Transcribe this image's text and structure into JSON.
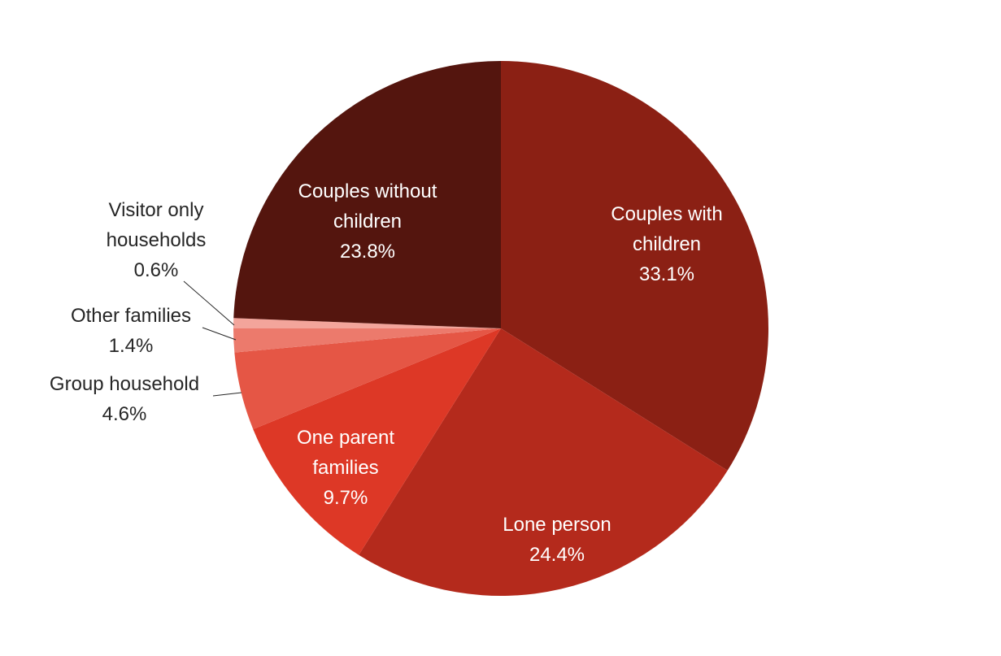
{
  "chart_data": {
    "type": "pie",
    "title": "",
    "slices": [
      {
        "label": "Couples with children",
        "value": 33.1,
        "value_label": "33.1%",
        "color": "#8b2014"
      },
      {
        "label": "Lone person",
        "value": 24.4,
        "value_label": "24.4%",
        "color": "#b42a1c"
      },
      {
        "label": "One parent families",
        "value": 9.7,
        "value_label": "9.7%",
        "color": "#dd3826"
      },
      {
        "label": "Group household",
        "value": 4.6,
        "value_label": "4.6%",
        "color": "#e55645"
      },
      {
        "label": "Other families",
        "value": 1.4,
        "value_label": "1.4%",
        "color": "#ec7a6c"
      },
      {
        "label": "Visitor only households",
        "value": 0.6,
        "value_label": "0.6%",
        "color": "#f3a59b"
      },
      {
        "label": "Couples without children",
        "value": 23.8,
        "value_label": "23.8%",
        "color": "#54150e"
      }
    ],
    "start_angle": "12 o'clock",
    "direction": "clockwise",
    "legend": "none",
    "labels": "data labels with category name and percentage"
  }
}
